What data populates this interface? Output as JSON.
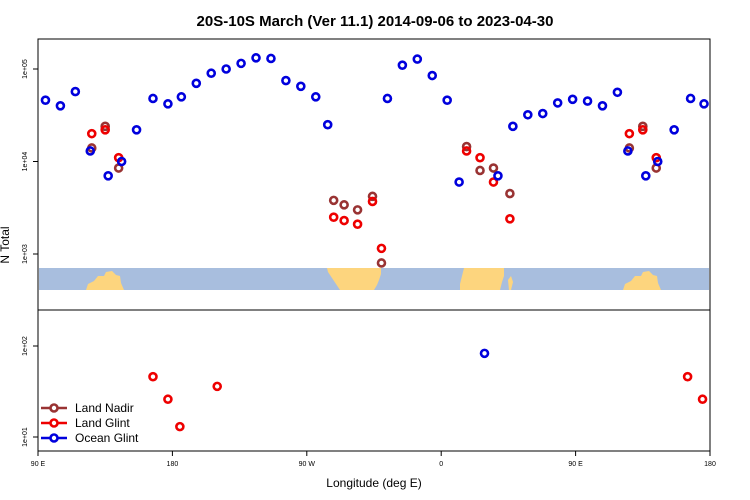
{
  "chart_data": {
    "type": "scatter",
    "title": "20S-10S March (Ver 11.1)   2014-09-06 to 2023-04-30",
    "xlabel": "Longitude (deg E)",
    "ylabel": "N Total",
    "x_ticks": [
      {
        "value": 90,
        "label": "90 E"
      },
      {
        "value": 180,
        "label": "180"
      },
      {
        "value": 270,
        "label": "90 W"
      },
      {
        "value": 360,
        "label": "0"
      },
      {
        "value": 450,
        "label": "90 E"
      },
      {
        "value": 540,
        "label": "180"
      }
    ],
    "xlim": [
      90,
      540
    ],
    "panels": [
      {
        "name": "upper",
        "scale": "log",
        "ylim": [
          1000,
          100000
        ],
        "y_ticks": [
          {
            "value": 1000,
            "label": "1e+03"
          },
          {
            "value": 10000,
            "label": "1e+04"
          },
          {
            "value": 100000,
            "label": "1e+05"
          }
        ]
      },
      {
        "name": "lower",
        "scale": "log",
        "ylim": [
          10,
          100
        ],
        "y_ticks": [
          {
            "value": 10,
            "label": "1e+01"
          },
          {
            "value": 100,
            "label": "1e+02"
          }
        ]
      }
    ],
    "legend": {
      "position": "bottom-left",
      "entries": [
        {
          "label": "Land Nadir",
          "color": "#993333"
        },
        {
          "label": "Land Glint",
          "color": "#ee0000"
        },
        {
          "label": "Ocean Glint",
          "color": "#0000dd"
        }
      ]
    },
    "series": [
      {
        "name": "Land Nadir",
        "color": "#993333",
        "points": [
          {
            "x": 126,
            "y": 14000,
            "panel": "upper"
          },
          {
            "x": 135,
            "y": 24000,
            "panel": "upper"
          },
          {
            "x": 144,
            "y": 8500,
            "panel": "upper"
          },
          {
            "x": 288,
            "y": 3800,
            "panel": "upper"
          },
          {
            "x": 295,
            "y": 3400,
            "panel": "upper"
          },
          {
            "x": 304,
            "y": 3000,
            "panel": "upper"
          },
          {
            "x": 314,
            "y": 4200,
            "panel": "upper"
          },
          {
            "x": 320,
            "y": 800,
            "panel": "upper"
          },
          {
            "x": 377,
            "y": 14500,
            "panel": "upper"
          },
          {
            "x": 386,
            "y": 8000,
            "panel": "upper"
          },
          {
            "x": 395,
            "y": 8500,
            "panel": "upper"
          },
          {
            "x": 406,
            "y": 4500,
            "panel": "upper"
          },
          {
            "x": 486,
            "y": 14000,
            "panel": "upper"
          },
          {
            "x": 495,
            "y": 24000,
            "panel": "upper"
          },
          {
            "x": 504,
            "y": 8500,
            "panel": "upper"
          }
        ]
      },
      {
        "name": "Land Glint",
        "color": "#ee0000",
        "points": [
          {
            "x": 126,
            "y": 20000,
            "panel": "upper"
          },
          {
            "x": 135,
            "y": 22000,
            "panel": "upper"
          },
          {
            "x": 144,
            "y": 11000,
            "panel": "upper"
          },
          {
            "x": 288,
            "y": 2500,
            "panel": "upper"
          },
          {
            "x": 295,
            "y": 2300,
            "panel": "upper"
          },
          {
            "x": 304,
            "y": 2100,
            "panel": "upper"
          },
          {
            "x": 314,
            "y": 3700,
            "panel": "upper"
          },
          {
            "x": 320,
            "y": 1150,
            "panel": "upper"
          },
          {
            "x": 377,
            "y": 13000,
            "panel": "upper"
          },
          {
            "x": 386,
            "y": 11000,
            "panel": "upper"
          },
          {
            "x": 395,
            "y": 6000,
            "panel": "upper"
          },
          {
            "x": 406,
            "y": 2400,
            "panel": "upper"
          },
          {
            "x": 486,
            "y": 20000,
            "panel": "upper"
          },
          {
            "x": 495,
            "y": 22000,
            "panel": "upper"
          },
          {
            "x": 504,
            "y": 11000,
            "panel": "upper"
          },
          {
            "x": 167,
            "y": 46,
            "panel": "lower"
          },
          {
            "x": 177,
            "y": 26,
            "panel": "lower"
          },
          {
            "x": 185,
            "y": 13,
            "panel": "lower"
          },
          {
            "x": 210,
            "y": 36,
            "panel": "lower"
          },
          {
            "x": 525,
            "y": 46,
            "panel": "lower"
          },
          {
            "x": 535,
            "y": 26,
            "panel": "lower"
          }
        ]
      },
      {
        "name": "Ocean Glint",
        "color": "#0000dd",
        "points": [
          {
            "x": 95,
            "y": 46000,
            "panel": "upper"
          },
          {
            "x": 105,
            "y": 40000,
            "panel": "upper"
          },
          {
            "x": 115,
            "y": 57000,
            "panel": "upper"
          },
          {
            "x": 125,
            "y": 13000,
            "panel": "upper"
          },
          {
            "x": 137,
            "y": 7000,
            "panel": "upper"
          },
          {
            "x": 146,
            "y": 10000,
            "panel": "upper"
          },
          {
            "x": 156,
            "y": 22000,
            "panel": "upper"
          },
          {
            "x": 167,
            "y": 48000,
            "panel": "upper"
          },
          {
            "x": 177,
            "y": 42000,
            "panel": "upper"
          },
          {
            "x": 186,
            "y": 50000,
            "panel": "upper"
          },
          {
            "x": 196,
            "y": 70000,
            "panel": "upper"
          },
          {
            "x": 206,
            "y": 90000,
            "panel": "upper"
          },
          {
            "x": 216,
            "y": 100000,
            "panel": "upper"
          },
          {
            "x": 226,
            "y": 115000,
            "panel": "upper"
          },
          {
            "x": 236,
            "y": 132000,
            "panel": "upper"
          },
          {
            "x": 246,
            "y": 130000,
            "panel": "upper"
          },
          {
            "x": 256,
            "y": 75000,
            "panel": "upper"
          },
          {
            "x": 266,
            "y": 65000,
            "panel": "upper"
          },
          {
            "x": 276,
            "y": 50000,
            "panel": "upper"
          },
          {
            "x": 284,
            "y": 25000,
            "panel": "upper"
          },
          {
            "x": 324,
            "y": 48000,
            "panel": "upper"
          },
          {
            "x": 334,
            "y": 110000,
            "panel": "upper"
          },
          {
            "x": 344,
            "y": 128000,
            "panel": "upper"
          },
          {
            "x": 354,
            "y": 85000,
            "panel": "upper"
          },
          {
            "x": 364,
            "y": 46000,
            "panel": "upper"
          },
          {
            "x": 372,
            "y": 6000,
            "panel": "upper"
          },
          {
            "x": 398,
            "y": 7000,
            "panel": "upper"
          },
          {
            "x": 408,
            "y": 24000,
            "panel": "upper"
          },
          {
            "x": 418,
            "y": 32000,
            "panel": "upper"
          },
          {
            "x": 428,
            "y": 33000,
            "panel": "upper"
          },
          {
            "x": 438,
            "y": 43000,
            "panel": "upper"
          },
          {
            "x": 448,
            "y": 47000,
            "panel": "upper"
          },
          {
            "x": 458,
            "y": 45000,
            "panel": "upper"
          },
          {
            "x": 468,
            "y": 40000,
            "panel": "upper"
          },
          {
            "x": 478,
            "y": 56000,
            "panel": "upper"
          },
          {
            "x": 485,
            "y": 13000,
            "panel": "upper"
          },
          {
            "x": 497,
            "y": 7000,
            "panel": "upper"
          },
          {
            "x": 505,
            "y": 10000,
            "panel": "upper"
          },
          {
            "x": 516,
            "y": 22000,
            "panel": "upper"
          },
          {
            "x": 527,
            "y": 48000,
            "panel": "upper"
          },
          {
            "x": 536,
            "y": 42000,
            "panel": "upper"
          },
          {
            "x": 389,
            "y": 83,
            "panel": "lower"
          }
        ]
      }
    ]
  }
}
